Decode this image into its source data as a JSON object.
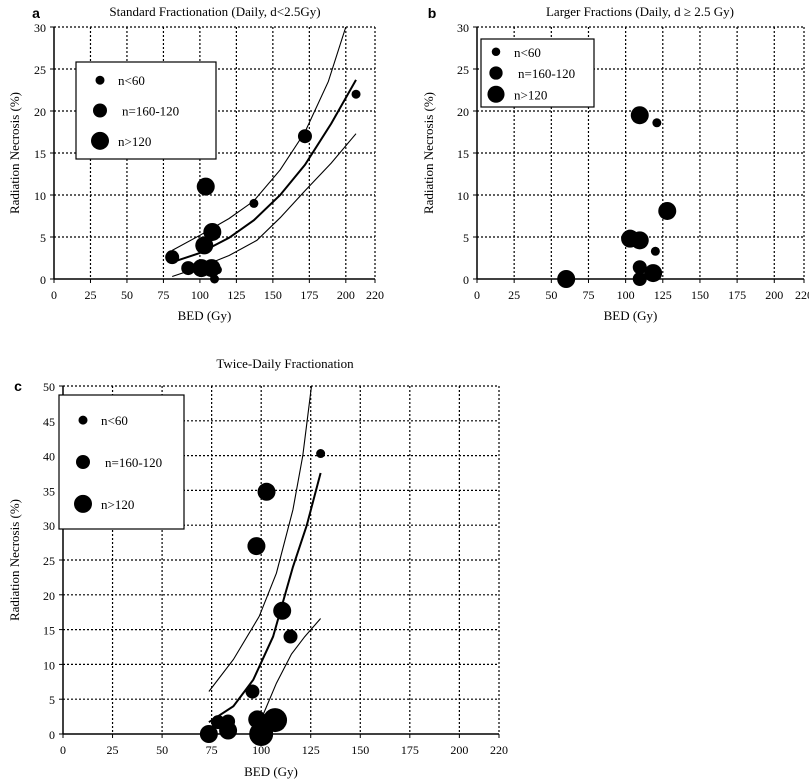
{
  "chart_data": [
    {
      "type": "scatter",
      "panel_label": "a",
      "title": "Standard Fractionation (Daily, d<2.5Gy)",
      "xlabel": "BED (Gy)",
      "ylabel": "Radiation Necrosis (%)",
      "xlim": [
        0,
        220
      ],
      "ylim": [
        0,
        30
      ],
      "xticks": [
        0,
        25,
        50,
        75,
        100,
        125,
        150,
        175,
        200,
        220
      ],
      "yticks": [
        0,
        5,
        10,
        15,
        20,
        25,
        30
      ],
      "grid": true,
      "legend": {
        "placement": "upper-left",
        "entries": [
          {
            "label": "n<60",
            "size": "small"
          },
          {
            "label": "n=160-120",
            "size": "medium"
          },
          {
            "label": "n>120",
            "size": "large"
          }
        ]
      },
      "points": [
        {
          "x": 81,
          "y": 2.6,
          "size": "medium"
        },
        {
          "x": 92,
          "y": 1.3,
          "size": "medium"
        },
        {
          "x": 101,
          "y": 1.3,
          "size": "large"
        },
        {
          "x": 108,
          "y": 1.3,
          "size": "large"
        },
        {
          "x": 112,
          "y": 1.1,
          "size": "small"
        },
        {
          "x": 110,
          "y": 0,
          "size": "small"
        },
        {
          "x": 103,
          "y": 4.0,
          "size": "large"
        },
        {
          "x": 108.5,
          "y": 5.6,
          "size": "large"
        },
        {
          "x": 104,
          "y": 11,
          "size": "large"
        },
        {
          "x": 137,
          "y": 9,
          "size": "small"
        },
        {
          "x": 172,
          "y": 17,
          "size": "medium"
        },
        {
          "x": 207,
          "y": 22,
          "size": "small"
        }
      ],
      "curves": [
        {
          "role": "upper",
          "points": [
            [
              81,
              3.4
            ],
            [
              100,
              5.2
            ],
            [
              120,
              7.2
            ],
            [
              137,
              9.3
            ],
            [
              155,
              13
            ],
            [
              172,
              17.5
            ],
            [
              188,
              23.5
            ],
            [
              200,
              30
            ]
          ]
        },
        {
          "role": "fit",
          "points": [
            [
              81,
              2.0
            ],
            [
              100,
              3.1
            ],
            [
              120,
              4.9
            ],
            [
              137,
              7
            ],
            [
              155,
              10
            ],
            [
              172,
              13.6
            ],
            [
              190,
              18.5
            ],
            [
              207,
              23.7
            ]
          ]
        },
        {
          "role": "lower",
          "points": [
            [
              81,
              0.3
            ],
            [
              100,
              1.4
            ],
            [
              120,
              2.8
            ],
            [
              139,
              4.6
            ],
            [
              155,
              7.3
            ],
            [
              172,
              10.5
            ],
            [
              190,
              13.8
            ],
            [
              207,
              17.3
            ]
          ]
        }
      ]
    },
    {
      "type": "scatter",
      "panel_label": "b",
      "title": "Larger Fractions (Daily, d ≥ 2.5 Gy)",
      "xlabel": "BED (Gy)",
      "ylabel": "Radiation Necrosis (%)",
      "xlim": [
        0,
        220
      ],
      "ylim": [
        0,
        30
      ],
      "xticks": [
        0,
        25,
        50,
        75,
        100,
        125,
        150,
        175,
        200,
        220
      ],
      "yticks": [
        0,
        5,
        10,
        15,
        20,
        25,
        30
      ],
      "grid": true,
      "legend": {
        "placement": "upper-left",
        "entries": [
          {
            "label": "n<60",
            "size": "small"
          },
          {
            "label": "n=160-120",
            "size": "medium"
          },
          {
            "label": "n>120",
            "size": "large"
          }
        ]
      },
      "points": [
        {
          "x": 109.5,
          "y": 19.5,
          "size": "large"
        },
        {
          "x": 121,
          "y": 18.6,
          "size": "small"
        },
        {
          "x": 128,
          "y": 8.1,
          "size": "large"
        },
        {
          "x": 103,
          "y": 4.8,
          "size": "large"
        },
        {
          "x": 109.5,
          "y": 4.6,
          "size": "large"
        },
        {
          "x": 120,
          "y": 3.3,
          "size": "small"
        },
        {
          "x": 109.5,
          "y": 1.4,
          "size": "medium"
        },
        {
          "x": 109.5,
          "y": 0,
          "size": "medium"
        },
        {
          "x": 118.5,
          "y": 0.7,
          "size": "large"
        },
        {
          "x": 60,
          "y": 0,
          "size": "large"
        }
      ],
      "curves": []
    },
    {
      "type": "scatter",
      "panel_label": "c",
      "title": "Twice-Daily Fractionation",
      "xlabel": "BED (Gy)",
      "ylabel": "Radiation Necrosis (%)",
      "xlim": [
        0,
        220
      ],
      "ylim": [
        0,
        50
      ],
      "xticks": [
        0,
        25,
        50,
        75,
        100,
        125,
        150,
        175,
        200,
        220
      ],
      "yticks": [
        0,
        5,
        10,
        15,
        20,
        25,
        30,
        35,
        40,
        45,
        50
      ],
      "grid": true,
      "legend": {
        "placement": "upper-left",
        "entries": [
          {
            "label": "n<60",
            "size": "small"
          },
          {
            "label": "n=160-120",
            "size": "medium"
          },
          {
            "label": "n>120",
            "size": "large"
          }
        ]
      },
      "points": [
        {
          "x": 130,
          "y": 40.3,
          "size": "small"
        },
        {
          "x": 102.7,
          "y": 34.8,
          "size": "large"
        },
        {
          "x": 97.6,
          "y": 27,
          "size": "large"
        },
        {
          "x": 110.6,
          "y": 17.7,
          "size": "large"
        },
        {
          "x": 114.8,
          "y": 14,
          "size": "medium"
        },
        {
          "x": 95.6,
          "y": 6.1,
          "size": "medium"
        },
        {
          "x": 78.3,
          "y": 1.7,
          "size": "medium"
        },
        {
          "x": 83.3,
          "y": 1.8,
          "size": "medium"
        },
        {
          "x": 83.3,
          "y": 0.5,
          "size": "large"
        },
        {
          "x": 73.6,
          "y": 0,
          "size": "large"
        },
        {
          "x": 98,
          "y": 2.1,
          "size": "large"
        },
        {
          "x": 100,
          "y": 0,
          "size": "xlarge"
        },
        {
          "x": 107,
          "y": 2,
          "size": "xlarge"
        }
      ],
      "curves": [
        {
          "role": "upper",
          "points": [
            [
              73.6,
              6.1
            ],
            [
              86,
              10.7
            ],
            [
              99,
              16.9
            ],
            [
              107.7,
              23.1
            ],
            [
              116,
              32.2
            ],
            [
              121,
              40
            ],
            [
              125.4,
              50
            ]
          ]
        },
        {
          "role": "fit",
          "points": [
            [
              73.6,
              1.7
            ],
            [
              86,
              4
            ],
            [
              96,
              7.8
            ],
            [
              106,
              14
            ],
            [
              116,
              24
            ],
            [
              123,
              30
            ],
            [
              130,
              37.5
            ]
          ]
        },
        {
          "role": "lower",
          "points": [
            [
              101,
              2.8
            ],
            [
              107.7,
              7.3
            ],
            [
              115.3,
              11.5
            ],
            [
              122,
              14
            ],
            [
              130,
              16.6
            ]
          ]
        }
      ]
    }
  ]
}
